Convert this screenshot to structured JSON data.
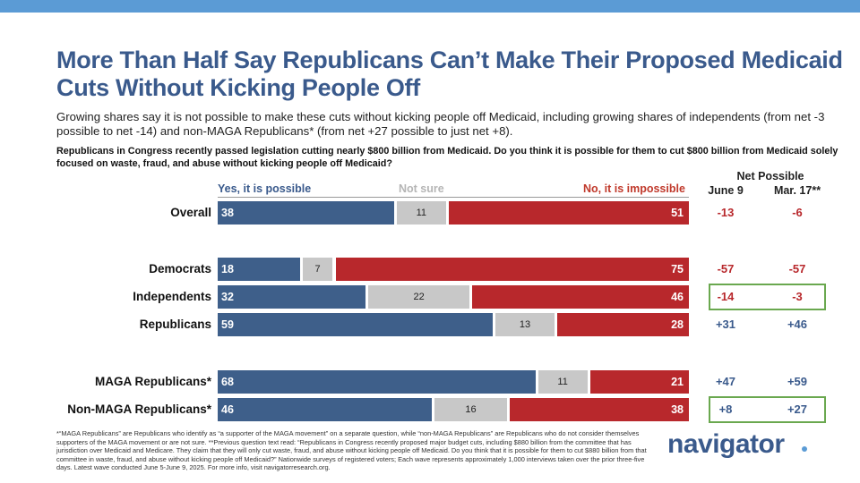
{
  "title": "More Than Half Say Republicans Can’t Make Their Proposed Medicaid Cuts Without Kicking People Off",
  "subtitle": "Growing shares say it is not possible to make these cuts without kicking people off Medicaid, including growing shares of independents (from net -3 possible to net -14) and non-MAGA Republicans* (from net +27 possible to just net +8).",
  "question": "Republicans in Congress recently passed legislation cutting nearly $800 billion from Medicaid. Do you think it is possible for them to cut $800 billion from Medicaid solely focused on waste, fraud, and abuse without kicking people off Medicaid?",
  "net_header": {
    "title": "Net Possible",
    "col1": "June 9",
    "col2": "Mar. 17**"
  },
  "chart_data": {
    "type": "bar",
    "stacked": true,
    "orientation": "horizontal",
    "legend": [
      "Yes, it is possible",
      "Not sure",
      "No, it is impossible"
    ],
    "categories": [
      "Overall",
      "Democrats",
      "Independents",
      "Republicans",
      "MAGA Republicans*",
      "Non-MAGA Republicans*"
    ],
    "series": [
      {
        "name": "Yes, it is possible",
        "values": [
          38,
          18,
          32,
          59,
          68,
          46
        ]
      },
      {
        "name": "Not sure",
        "values": [
          11,
          7,
          22,
          13,
          11,
          16
        ]
      },
      {
        "name": "No, it is impossible",
        "values": [
          51,
          75,
          46,
          28,
          21,
          38
        ]
      }
    ],
    "net_possible": {
      "june_9": [
        "-13",
        "-57",
        "-14",
        "+31",
        "+47",
        "+8"
      ],
      "mar_17": [
        "-6",
        "-57",
        "-3",
        "+46",
        "+59",
        "+27"
      ],
      "highlighted_rows": [
        "Independents",
        "Non-MAGA Republicans*"
      ]
    }
  },
  "colors": {
    "yes": "#3e5f8a",
    "not_sure": "#c8c8c8",
    "no": "#b8282c",
    "highlight": "#6aa84f"
  },
  "footnote": "*“MAGA Republicans” are Republicans who identify as “a supporter of the MAGA movement” on a separate question, while “non-MAGA Republicans” are Republicans who do not consider themselves supporters of the MAGA movement or are not sure. **Previous question text read: “Republicans in Congress recently proposed major budget cuts, including $880 billion from the committee that has jurisdiction over Medicaid and Medicare. They claim that they will only cut waste, fraud, and abuse without kicking people off Medicaid. Do you think that it is possible for them to cut $880 billion from that committee in waste, fraud, and abuse without kicking people off Medicaid?” Nationwide surveys of registered voters; Each wave represents approximately 1,000 interviews taken over the prior three-five days. Latest wave conducted June 5-June 9, 2025. For more info, visit navigatorresearch.org.",
  "logo": "navigator"
}
